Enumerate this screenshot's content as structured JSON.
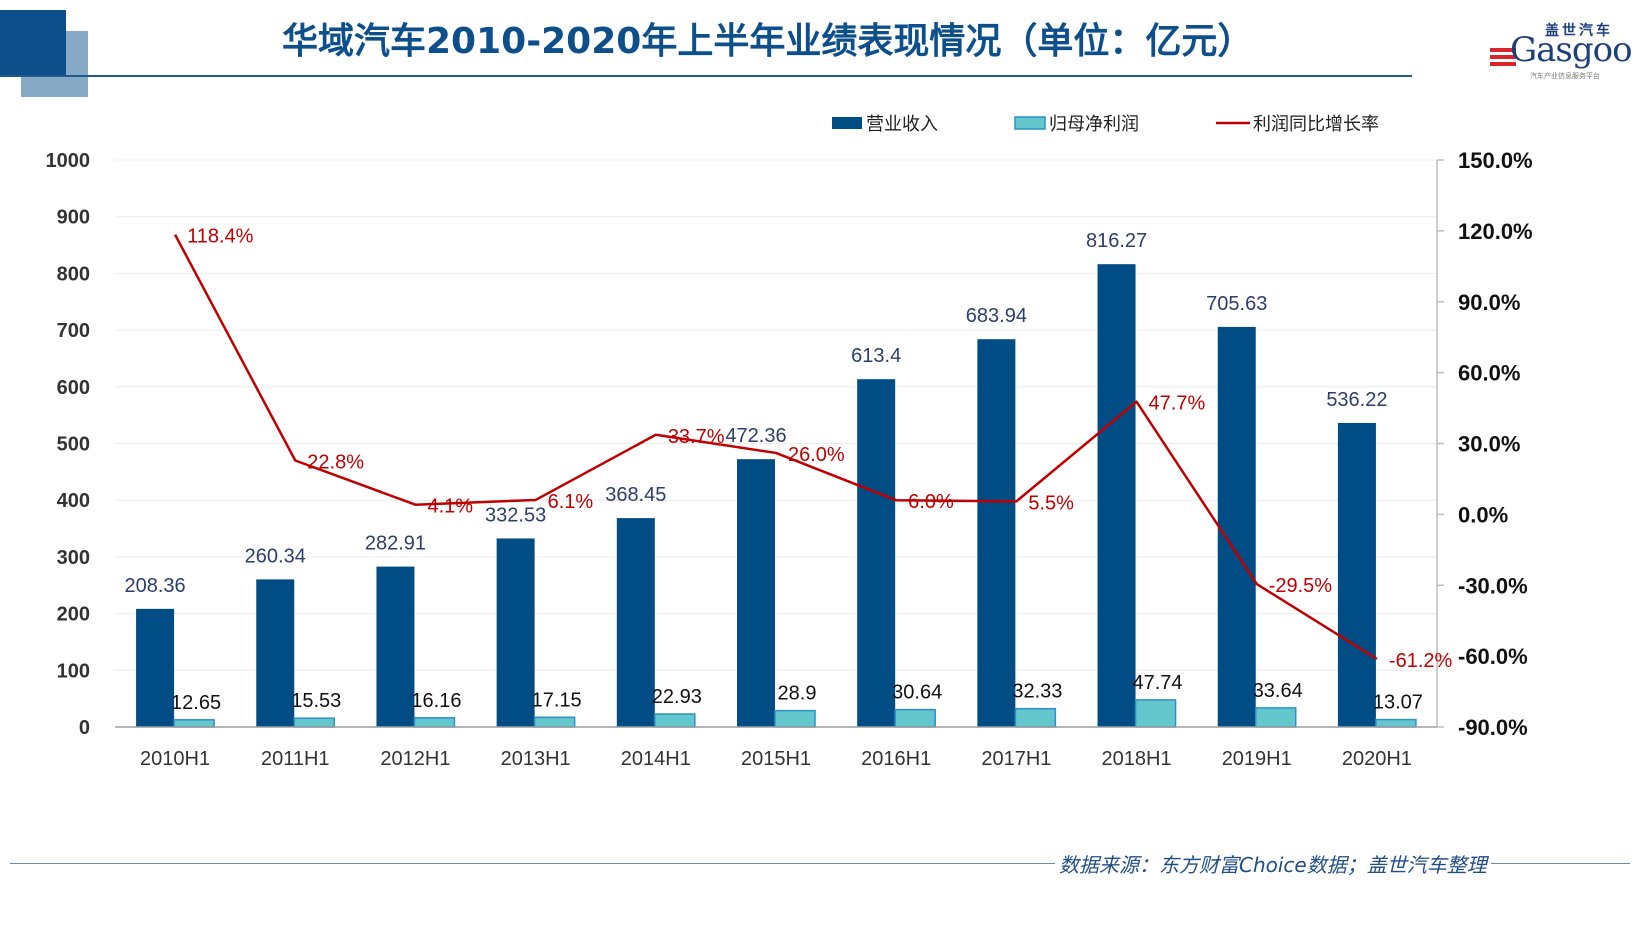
{
  "header": {
    "title": "华域汽车2010-2020年上半年业绩表现情况（单位：亿元）",
    "logo_cn": "盖世汽车",
    "logo_en": "Gasgoo",
    "logo_tagline": "汽车产业信息服务平台"
  },
  "footer": {
    "source": "数据来源：东方财富Choice数据；盖世汽车整理"
  },
  "colors": {
    "revenue": "#004c85",
    "profit": "#63c7cd",
    "profit_border": "#2f8fc4",
    "growth": "#c00000",
    "title": "#0d4f8b",
    "revenue_label": "#2c3e6b"
  },
  "chart_data": {
    "type": "bar",
    "title": "华域汽车2010-2020年上半年业绩表现情况（单位：亿元）",
    "categories": [
      "2010H1",
      "2011H1",
      "2012H1",
      "2013H1",
      "2014H1",
      "2015H1",
      "2016H1",
      "2017H1",
      "2018H1",
      "2019H1",
      "2020H1"
    ],
    "series": [
      {
        "name": "营业收入",
        "type": "bar",
        "axis": "left",
        "values": [
          208.36,
          260.34,
          282.91,
          332.53,
          368.45,
          472.36,
          613.4,
          683.94,
          816.27,
          705.63,
          536.22
        ],
        "labels": [
          "208.36",
          "260.34",
          "282.91",
          "332.53",
          "368.45",
          "472.36",
          "613.4",
          "683.94",
          "816.27",
          "705.63",
          "536.22"
        ]
      },
      {
        "name": "归母净利润",
        "type": "bar",
        "axis": "left",
        "values": [
          12.65,
          15.53,
          16.16,
          17.15,
          22.93,
          28.9,
          30.64,
          32.33,
          47.74,
          33.64,
          13.07
        ],
        "labels": [
          "12.65",
          "15.53",
          "16.16",
          "17.15",
          "22.93",
          "28.9",
          "30.64",
          "32.33",
          "47.74",
          "33.64",
          "13.07"
        ]
      },
      {
        "name": "利润同比增长率",
        "type": "line",
        "axis": "right",
        "values": [
          118.4,
          22.8,
          4.1,
          6.1,
          33.7,
          26.0,
          6.0,
          5.5,
          47.7,
          -29.5,
          -61.2
        ],
        "labels": [
          "118.4%",
          "22.8%",
          "4.1%",
          "6.1%",
          "33.7%",
          "26.0%",
          "6.0%",
          "5.5%",
          "47.7%",
          "-29.5%",
          "-61.2%"
        ]
      }
    ],
    "y_left": {
      "min": 0,
      "max": 1000,
      "step": 100,
      "ticks": [
        "0",
        "100",
        "200",
        "300",
        "400",
        "500",
        "600",
        "700",
        "800",
        "900",
        "1000"
      ]
    },
    "y_right": {
      "min": -90,
      "max": 150,
      "step": 30,
      "ticks": [
        "-90.0%",
        "-60.0%",
        "-30.0%",
        "0.0%",
        "30.0%",
        "60.0%",
        "90.0%",
        "120.0%",
        "150.0%"
      ]
    },
    "legend": {
      "position": "top-right",
      "items": [
        "营业收入",
        "归母净利润",
        "利润同比增长率"
      ]
    },
    "grid": true,
    "xlabel": "",
    "ylabel": ""
  }
}
